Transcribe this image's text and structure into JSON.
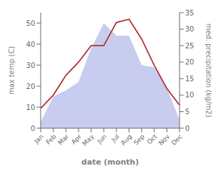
{
  "chart_data": {
    "type": "area",
    "xlabel": "date (month)",
    "ylabel": "max temp (C)",
    "y2label": "med. precipitation (kg/m2)",
    "categories": [
      "Jan",
      "Feb",
      "Mar",
      "Apr",
      "May",
      "Jun",
      "Jul",
      "Aug",
      "Sep",
      "Oct",
      "Nov",
      "Dec"
    ],
    "series": [
      {
        "type": "area",
        "color": "#b0b8e8",
        "values": [
          3,
          15,
          18,
          22,
          38,
          50,
          44,
          44,
          30,
          29,
          19,
          4
        ]
      },
      {
        "type": "line",
        "color": "#b03030",
        "axis": "y2",
        "values": [
          6,
          10,
          16,
          20,
          25,
          25,
          32,
          33,
          27,
          19,
          12,
          7
        ]
      }
    ],
    "ylim": [
      0,
      55
    ],
    "yticks": [
      0,
      10,
      20,
      30,
      40,
      50
    ],
    "y2lim": [
      0,
      35
    ],
    "y2ticks": [
      0,
      5,
      10,
      15,
      20,
      25,
      30,
      35
    ]
  }
}
